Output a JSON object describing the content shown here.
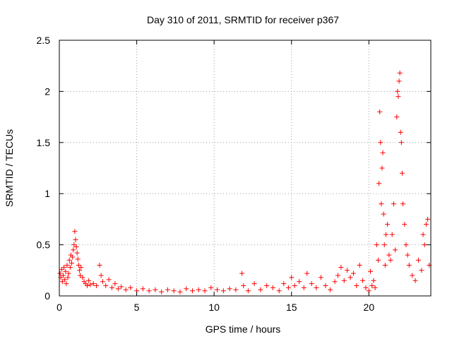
{
  "chart_data": {
    "type": "scatter",
    "title": "Day 310 of 2011, SRMTID for receiver p367",
    "xlabel": "GPS time / hours",
    "ylabel": "SRMTID / TECUs",
    "xlim": [
      0,
      24
    ],
    "ylim": [
      0,
      2.5
    ],
    "x_ticks": [
      0,
      5,
      10,
      15,
      20
    ],
    "x_tick_labels": [
      "0",
      "5",
      "10",
      "15",
      "20"
    ],
    "y_ticks": [
      0,
      0.5,
      1,
      1.5,
      2,
      2.5
    ],
    "y_tick_labels": [
      "0",
      "0.5",
      "1",
      "1.5",
      "2",
      "2.5"
    ],
    "grid": true,
    "marker": "+",
    "series": [
      {
        "name": "SRMTID",
        "color": "#ff0000",
        "x": [
          0.05,
          0.1,
          0.15,
          0.2,
          0.25,
          0.3,
          0.35,
          0.4,
          0.45,
          0.5,
          0.55,
          0.6,
          0.65,
          0.7,
          0.75,
          0.8,
          0.85,
          0.9,
          0.95,
          1.0,
          1.05,
          1.1,
          1.15,
          1.2,
          1.25,
          1.3,
          1.35,
          1.4,
          1.5,
          1.6,
          1.7,
          1.8,
          1.9,
          2.0,
          2.2,
          2.4,
          2.6,
          2.7,
          2.8,
          3.0,
          3.2,
          3.4,
          3.6,
          3.8,
          4.0,
          4.3,
          4.6,
          5.0,
          5.4,
          5.8,
          6.2,
          6.6,
          7.0,
          7.4,
          7.8,
          8.2,
          8.6,
          9.0,
          9.4,
          9.8,
          10.2,
          10.6,
          11.0,
          11.4,
          11.8,
          11.9,
          12.2,
          12.6,
          13.0,
          13.4,
          13.8,
          14.2,
          14.5,
          14.8,
          15.0,
          15.2,
          15.5,
          15.8,
          16.0,
          16.3,
          16.6,
          16.9,
          17.2,
          17.5,
          17.8,
          18.0,
          18.2,
          18.4,
          18.6,
          18.8,
          19.0,
          19.2,
          19.4,
          19.6,
          19.8,
          20.0,
          20.1,
          20.2,
          20.3,
          20.4,
          20.5,
          20.6,
          20.65,
          20.7,
          20.75,
          20.8,
          20.85,
          20.9,
          20.95,
          21.0,
          21.05,
          21.1,
          21.2,
          21.3,
          21.4,
          21.5,
          21.6,
          21.7,
          21.8,
          21.85,
          21.9,
          21.95,
          22.0,
          22.05,
          22.1,
          22.15,
          22.2,
          22.3,
          22.4,
          22.5,
          22.6,
          22.8,
          23.0,
          23.2,
          23.4,
          23.5,
          23.6,
          23.7,
          23.8,
          23.9
        ],
        "y": [
          0.22,
          0.18,
          0.26,
          0.14,
          0.2,
          0.28,
          0.16,
          0.24,
          0.12,
          0.3,
          0.18,
          0.22,
          0.35,
          0.28,
          0.4,
          0.32,
          0.38,
          0.45,
          0.5,
          0.63,
          0.55,
          0.48,
          0.42,
          0.36,
          0.3,
          0.25,
          0.2,
          0.28,
          0.18,
          0.14,
          0.12,
          0.1,
          0.15,
          0.11,
          0.12,
          0.1,
          0.3,
          0.2,
          0.14,
          0.1,
          0.16,
          0.08,
          0.12,
          0.07,
          0.09,
          0.06,
          0.08,
          0.05,
          0.07,
          0.05,
          0.06,
          0.04,
          0.06,
          0.05,
          0.04,
          0.07,
          0.05,
          0.06,
          0.05,
          0.08,
          0.06,
          0.05,
          0.07,
          0.06,
          0.22,
          0.1,
          0.05,
          0.12,
          0.06,
          0.1,
          0.08,
          0.05,
          0.12,
          0.08,
          0.18,
          0.1,
          0.14,
          0.08,
          0.22,
          0.12,
          0.08,
          0.18,
          0.1,
          0.06,
          0.14,
          0.2,
          0.28,
          0.15,
          0.25,
          0.18,
          0.22,
          0.1,
          0.3,
          0.15,
          0.08,
          0.05,
          0.24,
          0.1,
          0.15,
          0.08,
          0.5,
          0.35,
          1.1,
          1.8,
          1.5,
          0.9,
          1.25,
          1.4,
          0.8,
          0.5,
          0.3,
          0.6,
          0.7,
          0.4,
          0.35,
          0.6,
          0.9,
          0.45,
          1.75,
          2.0,
          1.95,
          2.1,
          2.18,
          1.6,
          1.5,
          1.2,
          0.9,
          0.7,
          0.5,
          0.4,
          0.3,
          0.2,
          0.15,
          0.35,
          0.25,
          0.6,
          0.5,
          0.7,
          0.75,
          0.3
        ]
      }
    ]
  }
}
